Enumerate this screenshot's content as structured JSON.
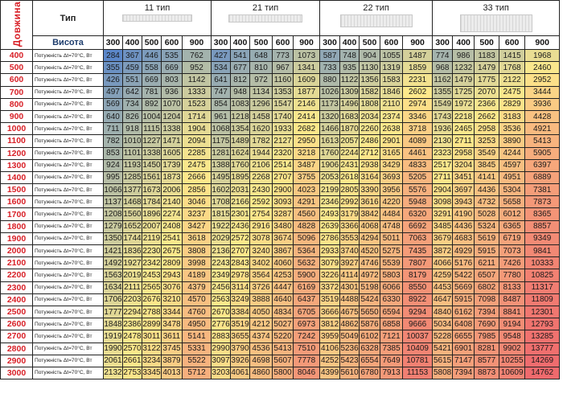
{
  "header": {
    "length_label": "Довжина",
    "type_label": "Тип",
    "height_label": "Висота",
    "groups": [
      {
        "label": "11 тип",
        "heights": [
          "300",
          "400",
          "500",
          "600",
          "900"
        ],
        "icon": "radiator-single-panel-icon"
      },
      {
        "label": "21 тип",
        "heights": [
          "300",
          "400",
          "500",
          "600",
          "900"
        ],
        "icon": "radiator-double-panel-icon"
      },
      {
        "label": "22 тип",
        "heights": [
          "300",
          "400",
          "500",
          "600",
          "900"
        ],
        "icon": "radiator-double-convector-icon"
      },
      {
        "label": "33 тип",
        "heights": [
          "300",
          "400",
          "500",
          "600",
          "900"
        ],
        "icon": "radiator-triple-panel-icon"
      }
    ]
  },
  "row_label": "Потужність Δt=70°С, Вт",
  "colors": {
    "low": "#5b87c9",
    "mid": "#fde98b",
    "high": "#ef6a6d",
    "length_text": "#d81f26",
    "height_header": "#1f3e6e"
  },
  "rows": [
    {
      "length": "400",
      "values": [
        284,
        367,
        446,
        535,
        762,
        427,
        541,
        648,
        773,
        1073,
        587,
        748,
        904,
        1055,
        1487,
        774,
        986,
        1183,
        1415,
        1968
      ]
    },
    {
      "length": "500",
      "values": [
        355,
        459,
        558,
        669,
        952,
        534,
        677,
        810,
        967,
        1341,
        733,
        935,
        1130,
        1319,
        1859,
        968,
        1232,
        1479,
        1768,
        2460
      ]
    },
    {
      "length": "600",
      "values": [
        426,
        551,
        669,
        803,
        1142,
        641,
        812,
        972,
        1160,
        1609,
        880,
        1122,
        1356,
        1583,
        2231,
        1162,
        1479,
        1775,
        2122,
        2952
      ]
    },
    {
      "length": "700",
      "values": [
        497,
        642,
        781,
        936,
        1333,
        747,
        948,
        1134,
        1353,
        1877,
        1026,
        1309,
        1582,
        1846,
        2602,
        1355,
        1725,
        2070,
        2475,
        3444
      ]
    },
    {
      "length": "800",
      "values": [
        569,
        734,
        892,
        1070,
        1523,
        854,
        1083,
        1296,
        1547,
        2146,
        1173,
        1496,
        1808,
        2110,
        2974,
        1549,
        1972,
        2366,
        2829,
        3936
      ]
    },
    {
      "length": "900",
      "values": [
        640,
        826,
        1004,
        1204,
        1714,
        961,
        1218,
        1458,
        1740,
        2414,
        1320,
        1683,
        2034,
        2374,
        3346,
        1743,
        2218,
        2662,
        3183,
        4428
      ]
    },
    {
      "length": "1000",
      "values": [
        711,
        918,
        1115,
        1338,
        1904,
        1068,
        1354,
        1620,
        1933,
        2682,
        1466,
        1870,
        2260,
        2638,
        3718,
        1936,
        2465,
        2958,
        3536,
        4921
      ]
    },
    {
      "length": "1100",
      "values": [
        782,
        1010,
        1227,
        1471,
        2094,
        1175,
        1489,
        1782,
        2127,
        2950,
        1613,
        2057,
        2486,
        2901,
        4089,
        2130,
        2711,
        3253,
        3890,
        5413
      ]
    },
    {
      "length": "1200",
      "values": [
        853,
        1101,
        1338,
        1605,
        2285,
        1281,
        1624,
        1944,
        2320,
        3218,
        1760,
        2244,
        2712,
        3165,
        4461,
        2323,
        2958,
        3549,
        4244,
        5905
      ]
    },
    {
      "length": "1300",
      "values": [
        924,
        1193,
        1450,
        1739,
        2475,
        1388,
        1760,
        2106,
        2514,
        3487,
        1906,
        2431,
        2938,
        3429,
        4833,
        2517,
        3204,
        3845,
        4597,
        6397
      ]
    },
    {
      "length": "1400",
      "values": [
        995,
        1285,
        1561,
        1873,
        2666,
        1495,
        1895,
        2268,
        2707,
        3755,
        2053,
        2618,
        3164,
        3693,
        5205,
        2711,
        3451,
        4141,
        4951,
        6889
      ]
    },
    {
      "length": "1500",
      "values": [
        1066,
        1377,
        1673,
        2006,
        2856,
        1602,
        2031,
        2430,
        2900,
        4023,
        2199,
        2805,
        3390,
        3956,
        5576,
        2904,
        3697,
        4436,
        5304,
        7381
      ]
    },
    {
      "length": "1600",
      "values": [
        1137,
        1468,
        1784,
        2140,
        3046,
        1708,
        2166,
        2592,
        3093,
        4291,
        2346,
        2992,
        3616,
        4220,
        5948,
        3098,
        3943,
        4732,
        5658,
        7873
      ]
    },
    {
      "length": "1700",
      "values": [
        1208,
        1560,
        1896,
        2274,
        3237,
        1815,
        2301,
        2754,
        3287,
        4560,
        2493,
        3179,
        3842,
        4484,
        6320,
        3291,
        4190,
        5028,
        6012,
        8365
      ]
    },
    {
      "length": "1800",
      "values": [
        1279,
        1652,
        2007,
        2408,
        3427,
        1922,
        2436,
        2916,
        3480,
        4828,
        2639,
        3366,
        4068,
        4748,
        6692,
        3485,
        4436,
        5324,
        6365,
        8857
      ]
    },
    {
      "length": "1900",
      "values": [
        1350,
        1744,
        2119,
        2541,
        3618,
        2029,
        2572,
        3078,
        3674,
        5096,
        2786,
        3553,
        4294,
        5011,
        7063,
        3679,
        4683,
        5619,
        6719,
        9349
      ]
    },
    {
      "length": "2000",
      "values": [
        1421,
        1836,
        2230,
        2675,
        3808,
        2136,
        2707,
        3240,
        3867,
        5364,
        2933,
        3740,
        4520,
        5275,
        7435,
        3872,
        4929,
        5915,
        7073,
        9841
      ]
    },
    {
      "length": "2100",
      "values": [
        1492,
        1927,
        2342,
        2809,
        3998,
        2243,
        2843,
        3402,
        4060,
        5632,
        3079,
        3927,
        4746,
        5539,
        7807,
        4066,
        5176,
        6211,
        7426,
        10333
      ]
    },
    {
      "length": "2200",
      "values": [
        1563,
        2019,
        2453,
        2943,
        4189,
        2349,
        2978,
        3564,
        4253,
        5900,
        3226,
        4114,
        4972,
        5803,
        8179,
        4259,
        5422,
        6507,
        7780,
        10825
      ]
    },
    {
      "length": "2300",
      "values": [
        1634,
        2111,
        2565,
        3076,
        4379,
        2456,
        3114,
        3726,
        4447,
        6169,
        3372,
        4301,
        5198,
        6066,
        8550,
        4453,
        5669,
        6802,
        8133,
        11317
      ]
    },
    {
      "length": "2400",
      "values": [
        1706,
        2203,
        2676,
        3210,
        4570,
        2563,
        3249,
        3888,
        4640,
        6437,
        3519,
        4488,
        5424,
        6330,
        8922,
        4647,
        5915,
        7098,
        8487,
        11809
      ]
    },
    {
      "length": "2500",
      "values": [
        1777,
        2294,
        2788,
        3344,
        4760,
        2670,
        3384,
        4050,
        4834,
        6705,
        3666,
        4675,
        5650,
        6594,
        9294,
        4840,
        6162,
        7394,
        8841,
        12301
      ]
    },
    {
      "length": "2600",
      "values": [
        1848,
        2386,
        2899,
        3478,
        4950,
        2776,
        3519,
        4212,
        5027,
        6973,
        3812,
        4862,
        5876,
        6858,
        9666,
        5034,
        6408,
        7690,
        9194,
        12793
      ]
    },
    {
      "length": "2700",
      "values": [
        1919,
        2478,
        3011,
        3611,
        5141,
        2883,
        3655,
        4374,
        5220,
        7242,
        3959,
        5049,
        6102,
        7121,
        10037,
        5228,
        6655,
        7985,
        9548,
        13285
      ]
    },
    {
      "length": "2800",
      "values": [
        1990,
        2570,
        3122,
        3745,
        5331,
        2990,
        3790,
        4536,
        5413,
        7510,
        4106,
        5236,
        6328,
        7385,
        10409,
        5421,
        6901,
        8281,
        9902,
        13777
      ]
    },
    {
      "length": "2900",
      "values": [
        2061,
        2661,
        3234,
        3879,
        5522,
        3097,
        3926,
        4698,
        5607,
        7778,
        4252,
        5423,
        6554,
        7649,
        10781,
        5615,
        7147,
        8577,
        10255,
        14269
      ]
    },
    {
      "length": "3000",
      "values": [
        2132,
        2753,
        3345,
        4013,
        5712,
        3203,
        4061,
        4860,
        5800,
        8046,
        4399,
        5610,
        6780,
        7913,
        11153,
        5808,
        7394,
        8873,
        10609,
        14762
      ]
    }
  ]
}
